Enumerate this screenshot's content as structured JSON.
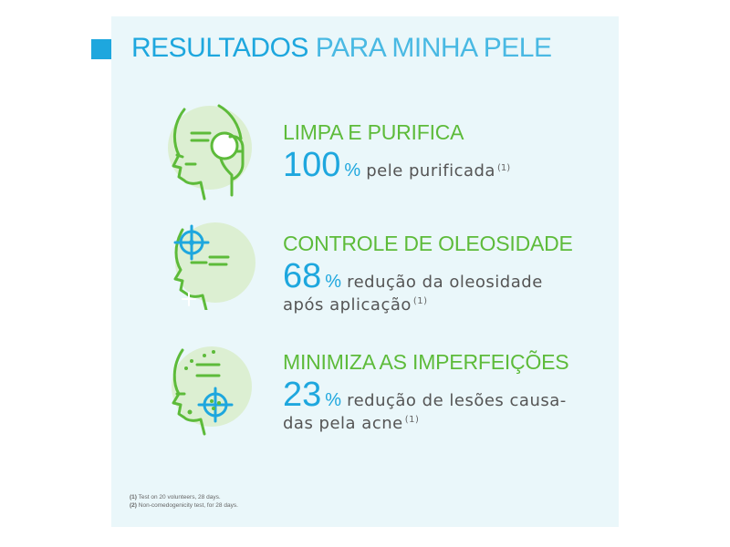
{
  "title": {
    "part1": "RESULTADOS",
    "part2": "PARA MINHA PELE"
  },
  "items": [
    {
      "icon": "face-cleansing-icon",
      "heading": "LIMPA E PURIFICA",
      "percent": "100",
      "percent_sign": "%",
      "description_line1": "pele purificada",
      "note_line1": "(1)",
      "description_line2": "",
      "note_line2": ""
    },
    {
      "icon": "face-oil-control-icon",
      "heading": "CONTROLE DE OLEOSIDADE",
      "percent": "68",
      "percent_sign": "%",
      "description_line1": "redução da oleosidade",
      "note_line1": "",
      "description_line2": "após aplicação",
      "note_line2": "(1)"
    },
    {
      "icon": "face-blemish-target-icon",
      "heading": "MINIMIZA AS IMPERFEIÇÕES",
      "percent": "23",
      "percent_sign": "%",
      "description_line1": "redução de lesões causa-",
      "note_line1": "",
      "description_line2": "das pela acne",
      "note_line2": "(1)"
    }
  ],
  "footnotes": [
    {
      "mark": "(1)",
      "text": "Test on 20 volunteers, 28 days."
    },
    {
      "mark": "(2)",
      "text": "Non-comedogenicity test, for 28 days."
    }
  ],
  "colors": {
    "accent_blue": "#1ea7de",
    "accent_green": "#5dbb3a",
    "panel_bg": "#eaf7fa",
    "circle_green": "#dcefd2"
  }
}
